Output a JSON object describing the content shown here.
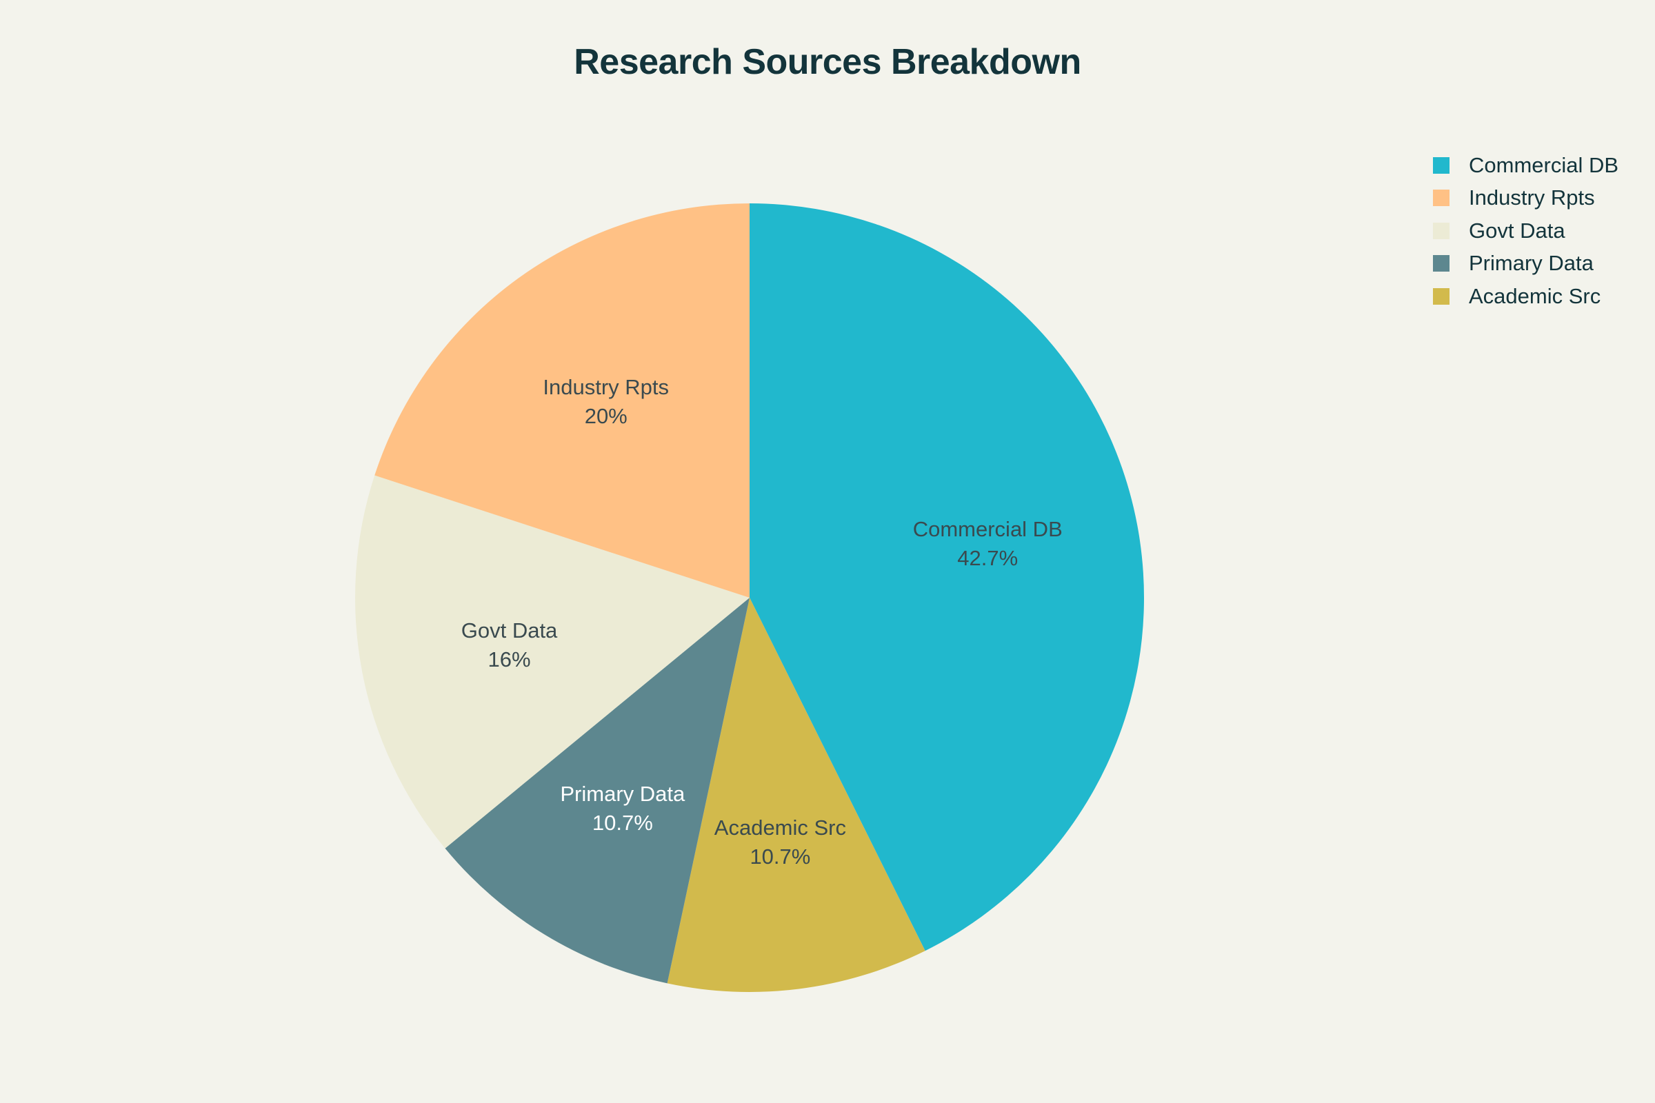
{
  "chart_data": {
    "type": "pie",
    "title": "Research Sources Breakdown",
    "categories": [
      "Commercial DB",
      "Industry Rpts",
      "Govt Data",
      "Primary Data",
      "Academic Src"
    ],
    "values": [
      42.7,
      20,
      16,
      10.7,
      10.7
    ],
    "value_labels": [
      "42.7%",
      "20%",
      "16%",
      "10.7%",
      "10.7%"
    ],
    "colors": [
      "#21b8cd",
      "#ffc185",
      "#ecebd5",
      "#5d878f",
      "#d2ba4c"
    ],
    "label_colors": [
      "#3a4a4f",
      "#3a4a4f",
      "#3a4a4f",
      "#ffffff",
      "#3a4a4f"
    ],
    "slice_order": [
      "Commercial DB",
      "Academic Src",
      "Primary Data",
      "Govt Data",
      "Industry Rpts"
    ],
    "direction": "clockwise",
    "start_angle": "top",
    "legend_position": "top-right"
  }
}
